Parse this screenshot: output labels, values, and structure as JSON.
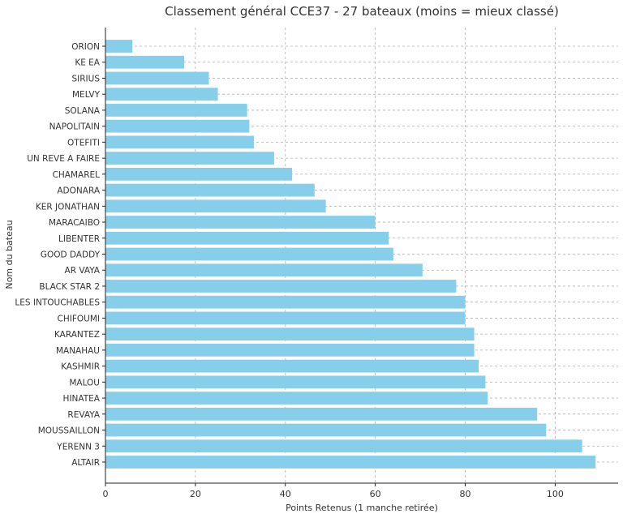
{
  "chart_data": {
    "type": "bar",
    "orientation": "horizontal",
    "title": "Classement général CCE37 - 27 bateaux (moins = mieux classé)",
    "xlabel": "Points Retenus (1 manche retirée)",
    "ylabel": "Nom du bateau",
    "xlim": [
      0,
      114
    ],
    "xticks": [
      0,
      20,
      40,
      60,
      80,
      100
    ],
    "grid": true,
    "bar_color": "#87ceeb",
    "categories": [
      "ORION",
      "KE EA",
      "SIRIUS",
      "MELVY",
      "SOLANA",
      "NAPOLITAIN",
      "OTEFITI",
      "UN REVE A FAIRE",
      "CHAMAREL",
      "ADONARA",
      "KER JONATHAN",
      "MARACAIBO",
      "LIBENTER",
      "GOOD DADDY",
      "AR VAYA",
      "BLACK STAR 2",
      "LES INTOUCHABLES",
      "CHIFOUMI",
      "KARANTEZ",
      "MANAHAU",
      "KASHMIR",
      "MALOU",
      "HINATEA",
      "REVAYA",
      "MOUSSAILLON",
      "YERENN 3",
      "ALTAIR"
    ],
    "values": [
      6,
      17.5,
      23,
      25,
      31.5,
      32,
      33,
      37.5,
      41.5,
      46.5,
      49,
      60,
      63,
      64,
      70.5,
      78,
      80,
      80,
      82,
      82,
      83,
      84.5,
      85,
      96,
      98,
      106,
      109
    ]
  }
}
